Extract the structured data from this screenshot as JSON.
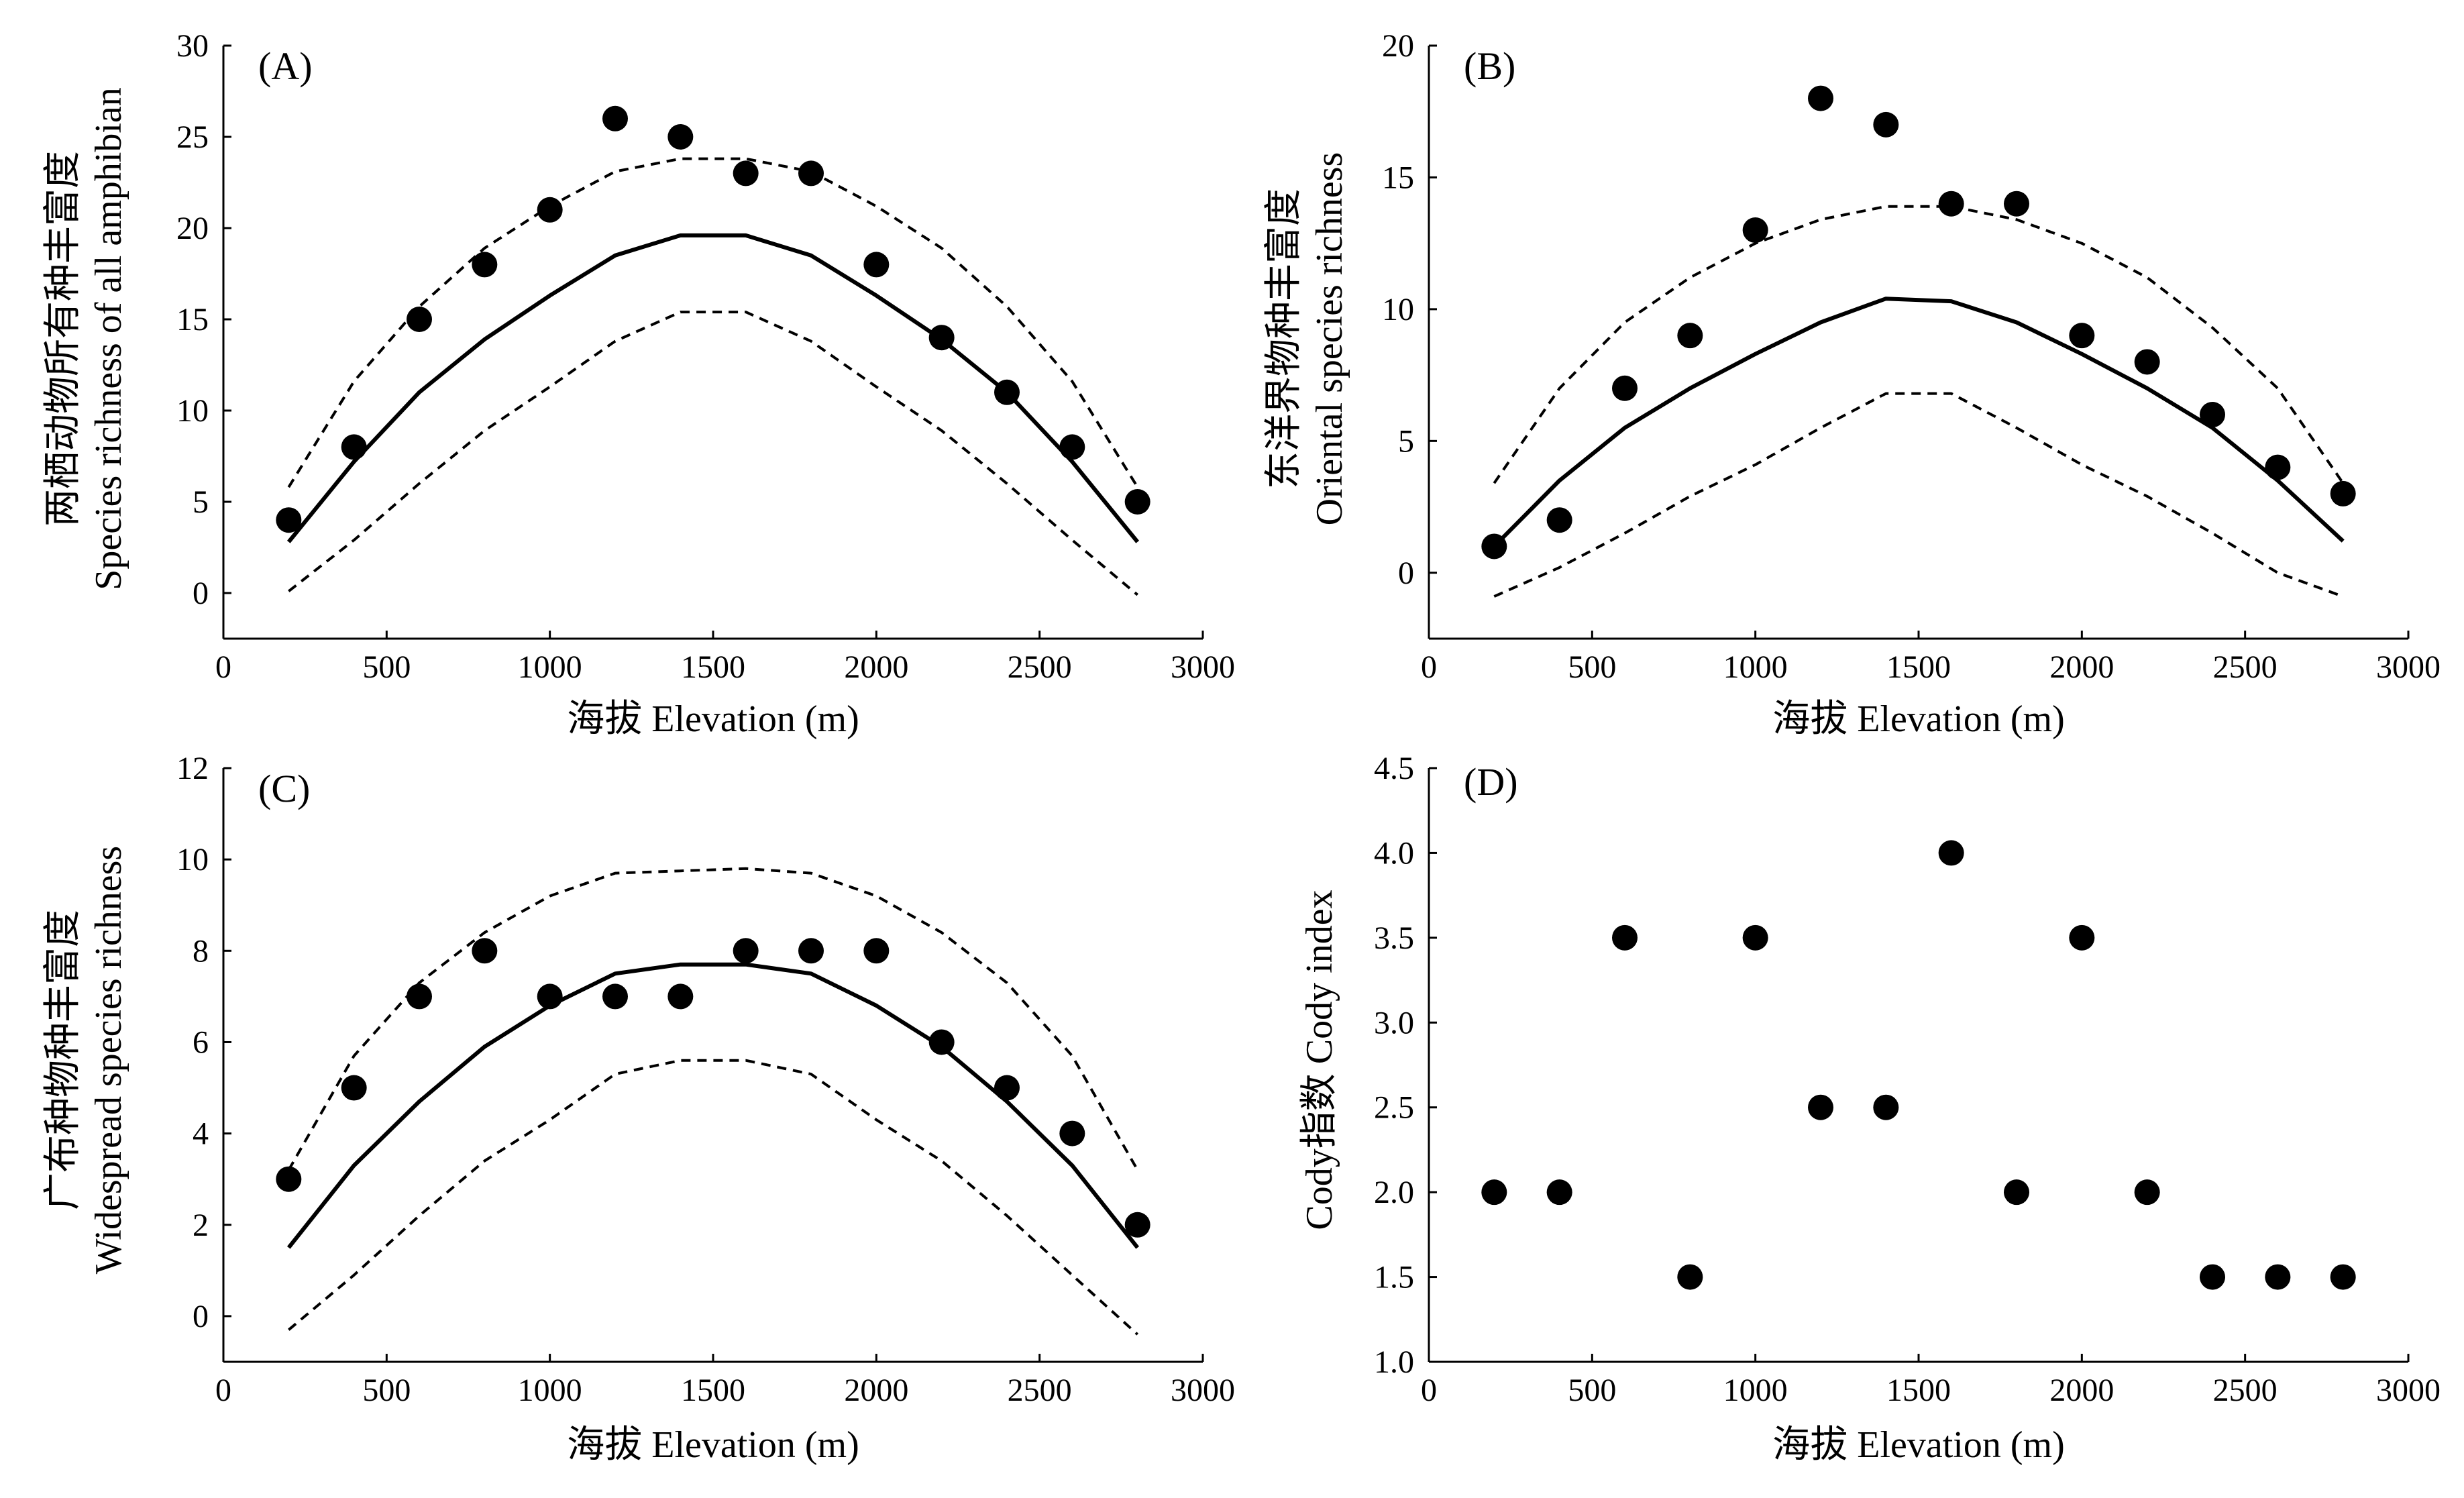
{
  "chart_data": [
    {
      "type": "scatter",
      "panel_label": "(A)",
      "xlabel": "海拔 Elevation (m)",
      "ylabel_lines": [
        "两栖动物所有种丰富度",
        "Species richness of all amphibian"
      ],
      "xlim": [
        0,
        3000
      ],
      "ylim": [
        -2.5,
        30
      ],
      "xticks": [
        0,
        500,
        1000,
        1500,
        2000,
        2500,
        3000
      ],
      "yticks": [
        0,
        5,
        10,
        15,
        20,
        25,
        30
      ],
      "points": {
        "x": [
          200,
          400,
          600,
          800,
          1000,
          1200,
          1400,
          1600,
          1800,
          2000,
          2200,
          2400,
          2600,
          2800
        ],
        "y": [
          4,
          8,
          15,
          18,
          21,
          26,
          25,
          23,
          23,
          18,
          14,
          11,
          8,
          5
        ]
      },
      "series": [
        {
          "style": "solid",
          "x": [
            200,
            400,
            600,
            800,
            1000,
            1200,
            1400,
            1600,
            1800,
            2000,
            2200,
            2400,
            2600,
            2800
          ],
          "y": [
            2.8,
            7.2,
            11.0,
            13.9,
            16.3,
            18.5,
            19.6,
            19.6,
            18.5,
            16.3,
            13.9,
            11.0,
            7.2,
            2.8
          ]
        },
        {
          "style": "dashed",
          "x": [
            200,
            400,
            600,
            800,
            1000,
            1200,
            1400,
            1600,
            1800,
            2000,
            2200,
            2400,
            2600,
            2800
          ],
          "y": [
            5.8,
            11.6,
            15.7,
            18.9,
            21.2,
            23.1,
            23.8,
            23.8,
            23.1,
            21.2,
            18.9,
            15.7,
            11.6,
            5.8
          ]
        },
        {
          "style": "dashed",
          "x": [
            200,
            400,
            600,
            800,
            1000,
            1200,
            1400,
            1600,
            1800,
            2000,
            2200,
            2400,
            2600,
            2800
          ],
          "y": [
            0.1,
            2.9,
            6.0,
            8.9,
            11.3,
            13.8,
            15.4,
            15.4,
            13.8,
            11.3,
            8.9,
            6.0,
            2.9,
            -0.1
          ]
        }
      ]
    },
    {
      "type": "scatter",
      "panel_label": "(B)",
      "xlabel": "海拔 Elevation (m)",
      "ylabel_lines": [
        "东洋界物种丰富度",
        "Oriental species richness"
      ],
      "xlim": [
        0,
        3000
      ],
      "ylim": [
        -2.5,
        20
      ],
      "xticks": [
        0,
        500,
        1000,
        1500,
        2000,
        2500,
        3000
      ],
      "yticks": [
        0,
        5,
        10,
        15,
        20
      ],
      "points": {
        "x": [
          200,
          400,
          600,
          800,
          1000,
          1200,
          1400,
          1600,
          1800,
          2000,
          2200,
          2400,
          2600,
          2800
        ],
        "y": [
          1,
          2,
          7,
          9,
          13,
          18,
          17,
          14,
          14,
          9,
          8,
          6,
          4,
          3
        ]
      },
      "series": [
        {
          "style": "solid",
          "x": [
            200,
            400,
            600,
            800,
            1000,
            1200,
            1400,
            1600,
            1800,
            2000,
            2200,
            2400,
            2600,
            2800
          ],
          "y": [
            1.0,
            3.5,
            5.5,
            7.0,
            8.3,
            9.5,
            10.4,
            10.3,
            9.5,
            8.3,
            7.0,
            5.5,
            3.5,
            1.2
          ]
        },
        {
          "style": "dashed",
          "x": [
            200,
            400,
            600,
            800,
            1000,
            1200,
            1400,
            1600,
            1800,
            2000,
            2200,
            2400,
            2600,
            2800
          ],
          "y": [
            3.4,
            7.0,
            9.5,
            11.2,
            12.5,
            13.4,
            13.9,
            13.9,
            13.4,
            12.5,
            11.2,
            9.3,
            7.0,
            3.4
          ]
        },
        {
          "style": "dashed",
          "x": [
            200,
            400,
            600,
            800,
            1000,
            1200,
            1400,
            1600,
            1800,
            2000,
            2200,
            2400,
            2600,
            2800
          ],
          "y": [
            -0.9,
            0.2,
            1.5,
            2.9,
            4.1,
            5.5,
            6.8,
            6.8,
            5.5,
            4.1,
            2.9,
            1.5,
            0.0,
            -0.9
          ]
        }
      ]
    },
    {
      "type": "scatter",
      "panel_label": "(C)",
      "xlabel": "海拔 Elevation (m)",
      "ylabel_lines": [
        "广布种物种丰富度",
        "Widespread species richness"
      ],
      "xlim": [
        0,
        3000
      ],
      "ylim": [
        -1,
        12
      ],
      "xticks": [
        0,
        500,
        1000,
        1500,
        2000,
        2500,
        3000
      ],
      "yticks": [
        0,
        2,
        4,
        6,
        8,
        10,
        12
      ],
      "points": {
        "x": [
          200,
          400,
          600,
          800,
          1000,
          1200,
          1400,
          1600,
          1800,
          2000,
          2200,
          2400,
          2600,
          2800
        ],
        "y": [
          3,
          5,
          7,
          8,
          7,
          7,
          7,
          8,
          8,
          8,
          6,
          5,
          4,
          2
        ]
      },
      "series": [
        {
          "style": "solid",
          "x": [
            200,
            400,
            600,
            800,
            1000,
            1200,
            1400,
            1600,
            1800,
            2000,
            2200,
            2400,
            2600,
            2800
          ],
          "y": [
            1.5,
            3.3,
            4.7,
            5.9,
            6.8,
            7.5,
            7.7,
            7.7,
            7.5,
            6.8,
            5.9,
            4.7,
            3.3,
            1.5
          ]
        },
        {
          "style": "dashed",
          "x": [
            200,
            400,
            600,
            800,
            1000,
            1200,
            1400,
            1600,
            1800,
            2000,
            2200,
            2400,
            2600,
            2800
          ],
          "y": [
            3.2,
            5.7,
            7.3,
            8.4,
            9.2,
            9.7,
            9.75,
            9.8,
            9.7,
            9.2,
            8.4,
            7.3,
            5.7,
            3.2
          ]
        },
        {
          "style": "dashed",
          "x": [
            200,
            400,
            600,
            800,
            1000,
            1200,
            1400,
            1600,
            1800,
            2000,
            2200,
            2400,
            2600,
            2800
          ],
          "y": [
            -0.3,
            0.9,
            2.2,
            3.4,
            4.3,
            5.3,
            5.6,
            5.6,
            5.3,
            4.3,
            3.4,
            2.2,
            0.9,
            -0.4
          ]
        }
      ]
    },
    {
      "type": "scatter",
      "panel_label": "(D)",
      "xlabel": "海拔  Elevation (m)",
      "ylabel_lines": [
        "Cody指数 Cody index"
      ],
      "xlim": [
        0,
        3000
      ],
      "ylim": [
        1.0,
        4.5
      ],
      "xticks": [
        0,
        500,
        1000,
        1500,
        2000,
        2500,
        3000
      ],
      "yticks": [
        1.0,
        1.5,
        2.0,
        2.5,
        3.0,
        3.5,
        4.0,
        4.5
      ],
      "yticklabels": [
        "1.0",
        "1.5",
        "2.0",
        "2.5",
        "3.0",
        "3.5",
        "4.0",
        "4.5"
      ],
      "points": {
        "x": [
          200,
          400,
          600,
          800,
          1000,
          1200,
          1400,
          1600,
          1800,
          2000,
          2200,
          2400,
          2600,
          2800
        ],
        "y": [
          2.0,
          2.0,
          3.5,
          1.5,
          3.5,
          2.5,
          2.5,
          4.0,
          2.0,
          3.5,
          2.0,
          1.5,
          1.5,
          1.5
        ]
      },
      "series": []
    }
  ]
}
